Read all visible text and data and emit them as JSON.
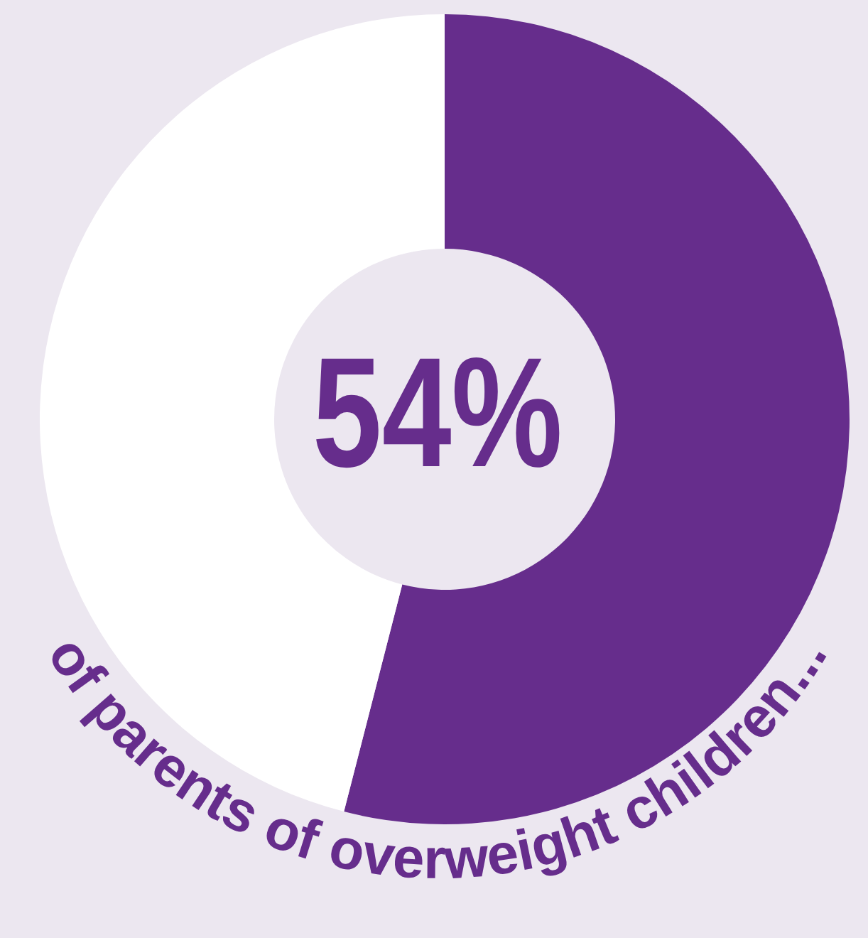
{
  "chart_data": {
    "type": "donut",
    "title": "54%",
    "subtitle": "of parents of overweight children...",
    "categories": [
      null,
      null
    ],
    "values": [
      54,
      46
    ],
    "colors": [
      "#662d8c",
      "#ffffff"
    ]
  }
}
